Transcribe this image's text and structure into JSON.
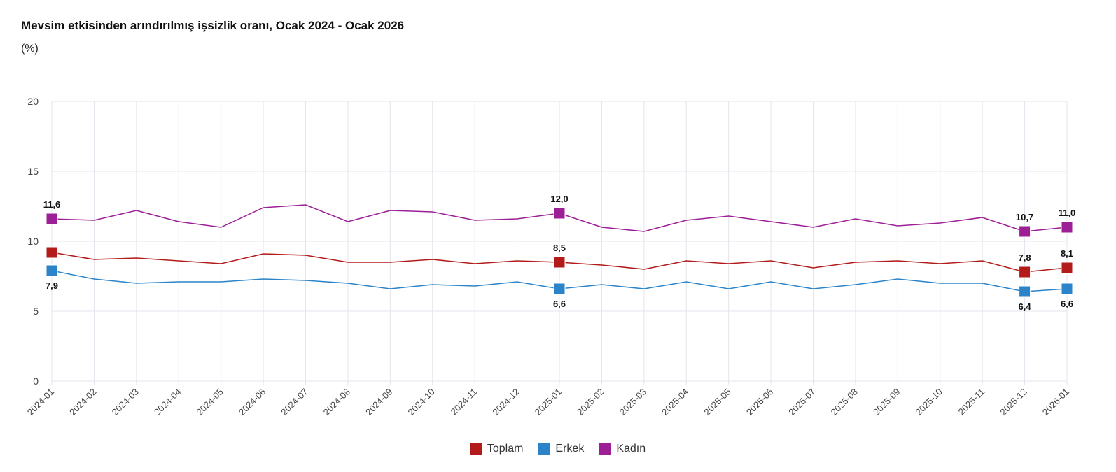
{
  "chart_data": {
    "type": "line",
    "title": "Mevsim etkisinden arındırılmış işsizlik oranı, Ocak 2024 - Ocak 2026",
    "ylabel": "(%)",
    "xlabel": "",
    "ylim": [
      0,
      20
    ],
    "yticks": [
      "0",
      "5",
      "10",
      "15",
      "20"
    ],
    "grid": true,
    "legend_position": "bottom",
    "x": [
      "2024-01",
      "2024-02",
      "2024-03",
      "2024-04",
      "2024-05",
      "2024-06",
      "2024-07",
      "2024-08",
      "2024-09",
      "2024-10",
      "2024-11",
      "2024-12",
      "2025-01",
      "2025-02",
      "2025-03",
      "2025-04",
      "2025-05",
      "2025-06",
      "2025-07",
      "2025-08",
      "2025-09",
      "2025-10",
      "2025-11",
      "2025-12",
      "2026-01"
    ],
    "highlighted_points": [
      0,
      12,
      23,
      24
    ],
    "series": [
      {
        "name": "Toplam",
        "color": "#b31b1b",
        "values": [
          9.2,
          8.7,
          8.8,
          8.6,
          8.4,
          9.1,
          9.0,
          8.5,
          8.5,
          8.7,
          8.4,
          8.6,
          8.5,
          8.3,
          8.0,
          8.6,
          8.4,
          8.6,
          8.1,
          8.5,
          8.6,
          8.4,
          8.6,
          7.8,
          8.1
        ],
        "labels": {
          "0": "9,2",
          "12": "8,5",
          "23": "7,8",
          "24": "8,1"
        }
      },
      {
        "name": "Erkek",
        "color": "#2b84c9",
        "values": [
          7.9,
          7.3,
          7.0,
          7.1,
          7.1,
          7.3,
          7.2,
          7.0,
          6.6,
          6.9,
          6.8,
          7.1,
          6.6,
          6.9,
          6.6,
          7.1,
          6.6,
          7.1,
          6.6,
          6.9,
          7.3,
          7.0,
          7.0,
          6.4,
          6.6
        ],
        "labels": {
          "0": "7,9",
          "12": "6,6",
          "23": "6,4",
          "24": "6,6"
        }
      },
      {
        "name": "Kadın",
        "color": "#9c1f96",
        "values": [
          11.6,
          11.5,
          12.2,
          11.4,
          11.0,
          12.4,
          12.6,
          11.4,
          12.2,
          12.1,
          11.5,
          11.6,
          12.0,
          11.0,
          10.7,
          11.5,
          11.8,
          11.4,
          11.0,
          11.6,
          11.1,
          11.3,
          11.7,
          10.7,
          11.0
        ],
        "labels": {
          "0": "11,6",
          "12": "12,0",
          "23": "10,7",
          "24": "11,0"
        }
      }
    ]
  }
}
